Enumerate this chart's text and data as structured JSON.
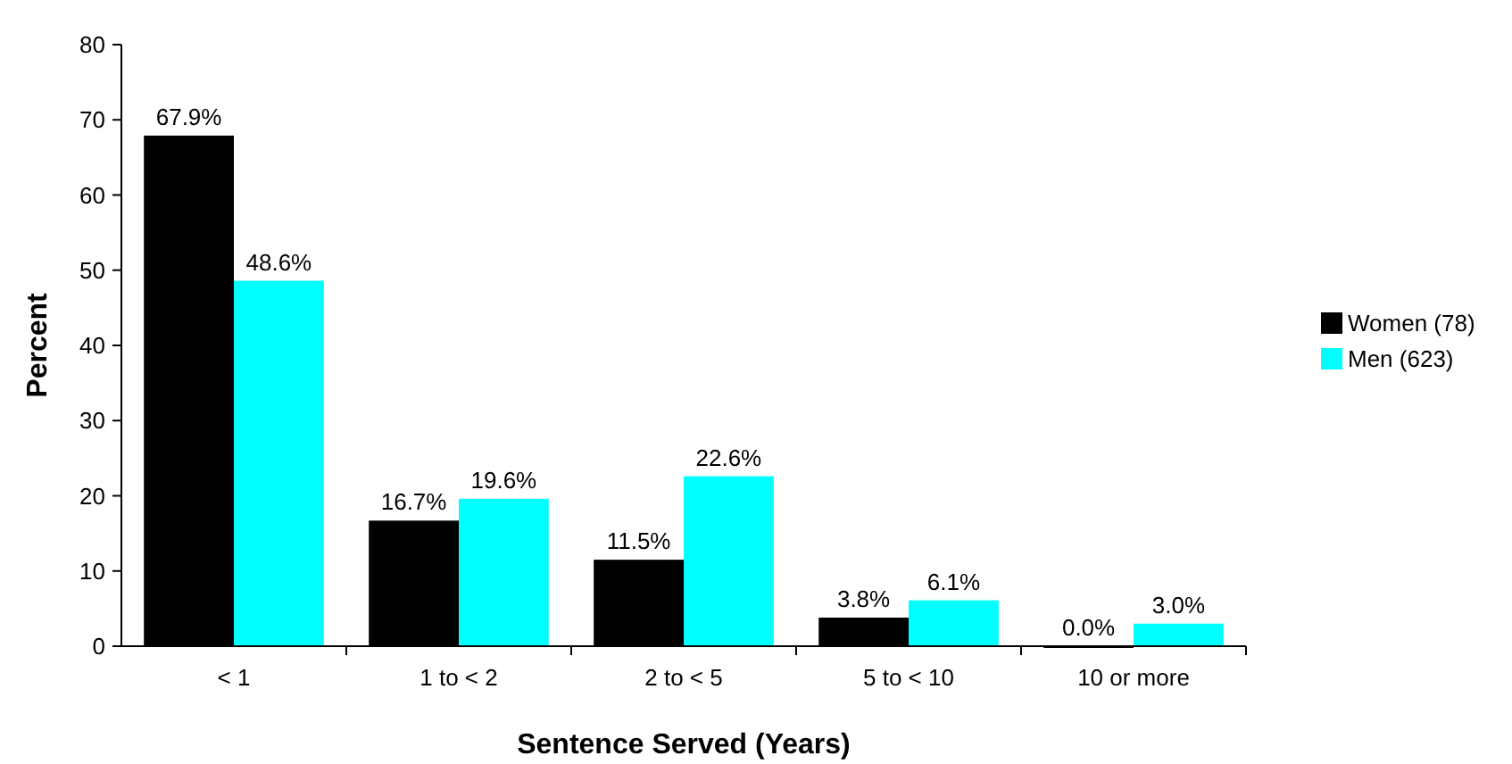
{
  "chart_data": {
    "type": "bar",
    "xlabel": "Sentence Served (Years)",
    "ylabel": "Percent",
    "categories": [
      "< 1",
      "1 to < 2",
      "2 to < 5",
      "5 to < 10",
      "10 or more"
    ],
    "series": [
      {
        "name": "Women (78)",
        "color": "#000000",
        "values": [
          67.9,
          16.7,
          11.5,
          3.8,
          0.0
        ],
        "value_labels": [
          "67.9%",
          "16.7%",
          "11.5%",
          "3.8%",
          "0.0%"
        ]
      },
      {
        "name": "Men (623)",
        "color": "#00ffff",
        "values": [
          48.6,
          19.6,
          22.6,
          6.1,
          3.0
        ],
        "value_labels": [
          "48.6%",
          "19.6%",
          "22.6%",
          "6.1%",
          "3.0%"
        ]
      }
    ],
    "ylim": [
      0,
      80
    ],
    "yticks": [
      0,
      10,
      20,
      30,
      40,
      50,
      60,
      70,
      80
    ],
    "grid": false,
    "legend": "right"
  }
}
